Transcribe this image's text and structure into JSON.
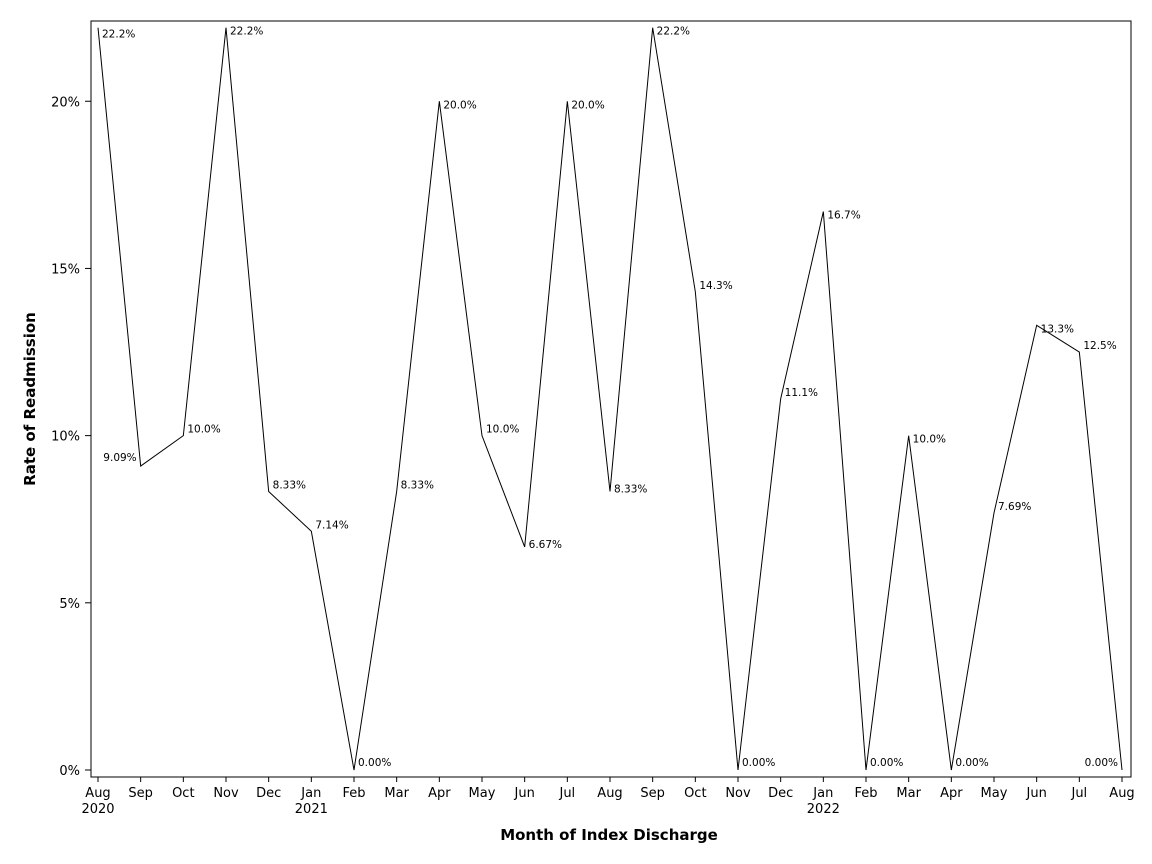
{
  "chart_data": {
    "type": "line",
    "title": "",
    "xlabel": "Month of Index Discharge",
    "ylabel": "Rate of Readmission",
    "ylim": [
      0,
      22.4
    ],
    "grid": false,
    "line_color": "#000000",
    "y_ticks": [
      {
        "value": 0,
        "label": "0%"
      },
      {
        "value": 5,
        "label": "5%"
      },
      {
        "value": 10,
        "label": "10%"
      },
      {
        "value": 15,
        "label": "15%"
      },
      {
        "value": 20,
        "label": "20%"
      }
    ],
    "x_ticks": [
      {
        "label": "Aug",
        "year": "2020"
      },
      {
        "label": "Sep"
      },
      {
        "label": "Oct"
      },
      {
        "label": "Nov"
      },
      {
        "label": "Dec"
      },
      {
        "label": "Jan",
        "year": "2021"
      },
      {
        "label": "Feb"
      },
      {
        "label": "Mar"
      },
      {
        "label": "Apr"
      },
      {
        "label": "May"
      },
      {
        "label": "Jun"
      },
      {
        "label": "Jul"
      },
      {
        "label": "Aug"
      },
      {
        "label": "Sep"
      },
      {
        "label": "Oct"
      },
      {
        "label": "Nov"
      },
      {
        "label": "Dec"
      },
      {
        "label": "Jan",
        "year": "2022"
      },
      {
        "label": "Feb"
      },
      {
        "label": "Mar"
      },
      {
        "label": "Apr"
      },
      {
        "label": "May"
      },
      {
        "label": "Jun"
      },
      {
        "label": "Jul"
      },
      {
        "label": "Aug"
      }
    ],
    "series": [
      {
        "points": [
          {
            "x": "2020-08",
            "y": 22.2,
            "label": "22.2%"
          },
          {
            "x": "2020-09",
            "y": 9.09,
            "label": "9.09%"
          },
          {
            "x": "2020-10",
            "y": 10.0,
            "label": "10.0%"
          },
          {
            "x": "2020-11",
            "y": 22.2,
            "label": "22.2%"
          },
          {
            "x": "2020-12",
            "y": 8.33,
            "label": "8.33%"
          },
          {
            "x": "2021-01",
            "y": 7.14,
            "label": "7.14%"
          },
          {
            "x": "2021-02",
            "y": 0.0,
            "label": "0.00%"
          },
          {
            "x": "2021-03",
            "y": 8.33,
            "label": "8.33%"
          },
          {
            "x": "2021-04",
            "y": 20.0,
            "label": "20.0%"
          },
          {
            "x": "2021-05",
            "y": 10.0,
            "label": "10.0%"
          },
          {
            "x": "2021-06",
            "y": 6.67,
            "label": "6.67%"
          },
          {
            "x": "2021-07",
            "y": 20.0,
            "label": "20.0%"
          },
          {
            "x": "2021-08",
            "y": 8.33,
            "label": "8.33%"
          },
          {
            "x": "2021-09",
            "y": 22.2,
            "label": "22.2%"
          },
          {
            "x": "2021-10",
            "y": 14.3,
            "label": "14.3%"
          },
          {
            "x": "2021-11",
            "y": 0.0,
            "label": "0.00%"
          },
          {
            "x": "2021-12",
            "y": 11.1,
            "label": "11.1%"
          },
          {
            "x": "2022-01",
            "y": 16.7,
            "label": "16.7%"
          },
          {
            "x": "2022-02",
            "y": 0.0,
            "label": "0.00%"
          },
          {
            "x": "2022-03",
            "y": 10.0,
            "label": "10.0%"
          },
          {
            "x": "2022-04",
            "y": 0.0,
            "label": "0.00%"
          },
          {
            "x": "2022-05",
            "y": 7.69,
            "label": "7.69%"
          },
          {
            "x": "2022-06",
            "y": 13.3,
            "label": "13.3%"
          },
          {
            "x": "2022-07",
            "y": 12.5,
            "label": "12.5%"
          },
          {
            "x": "2022-08",
            "y": 0.0,
            "label": "0.00%"
          }
        ]
      }
    ]
  }
}
